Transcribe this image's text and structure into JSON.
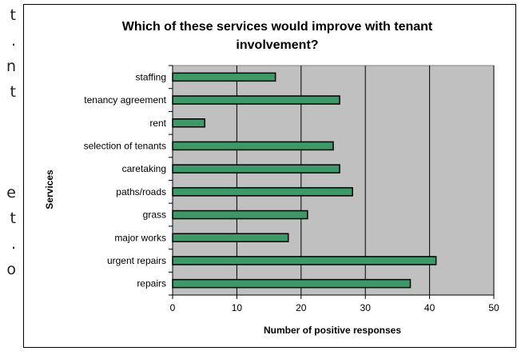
{
  "edge_fragments": [
    "t",
    ".",
    "n",
    "t",
    "e",
    "t",
    ".",
    "o"
  ],
  "colors": {
    "bar_fill": "#3a9a68",
    "plot_bg": "#c0c0c0",
    "grid": "#000000"
  },
  "chart_data": {
    "type": "bar",
    "orientation": "horizontal",
    "title_lines": [
      "Which of these services would improve with tenant",
      "involvement?"
    ],
    "xlabel": "Number of positive responses",
    "ylabel": "Services",
    "categories": [
      "staffing",
      "tenancy agreement",
      "rent",
      "selection of tenants",
      "caretaking",
      "paths/roads",
      "grass",
      "major works",
      "urgent repairs",
      "repairs"
    ],
    "values": [
      16,
      26,
      5,
      25,
      26,
      28,
      21,
      18,
      41,
      37
    ],
    "xlim": [
      0,
      50
    ],
    "xticks": [
      "0",
      "10",
      "20",
      "30",
      "40",
      "50"
    ],
    "grid": "vertical",
    "legend": "none"
  }
}
